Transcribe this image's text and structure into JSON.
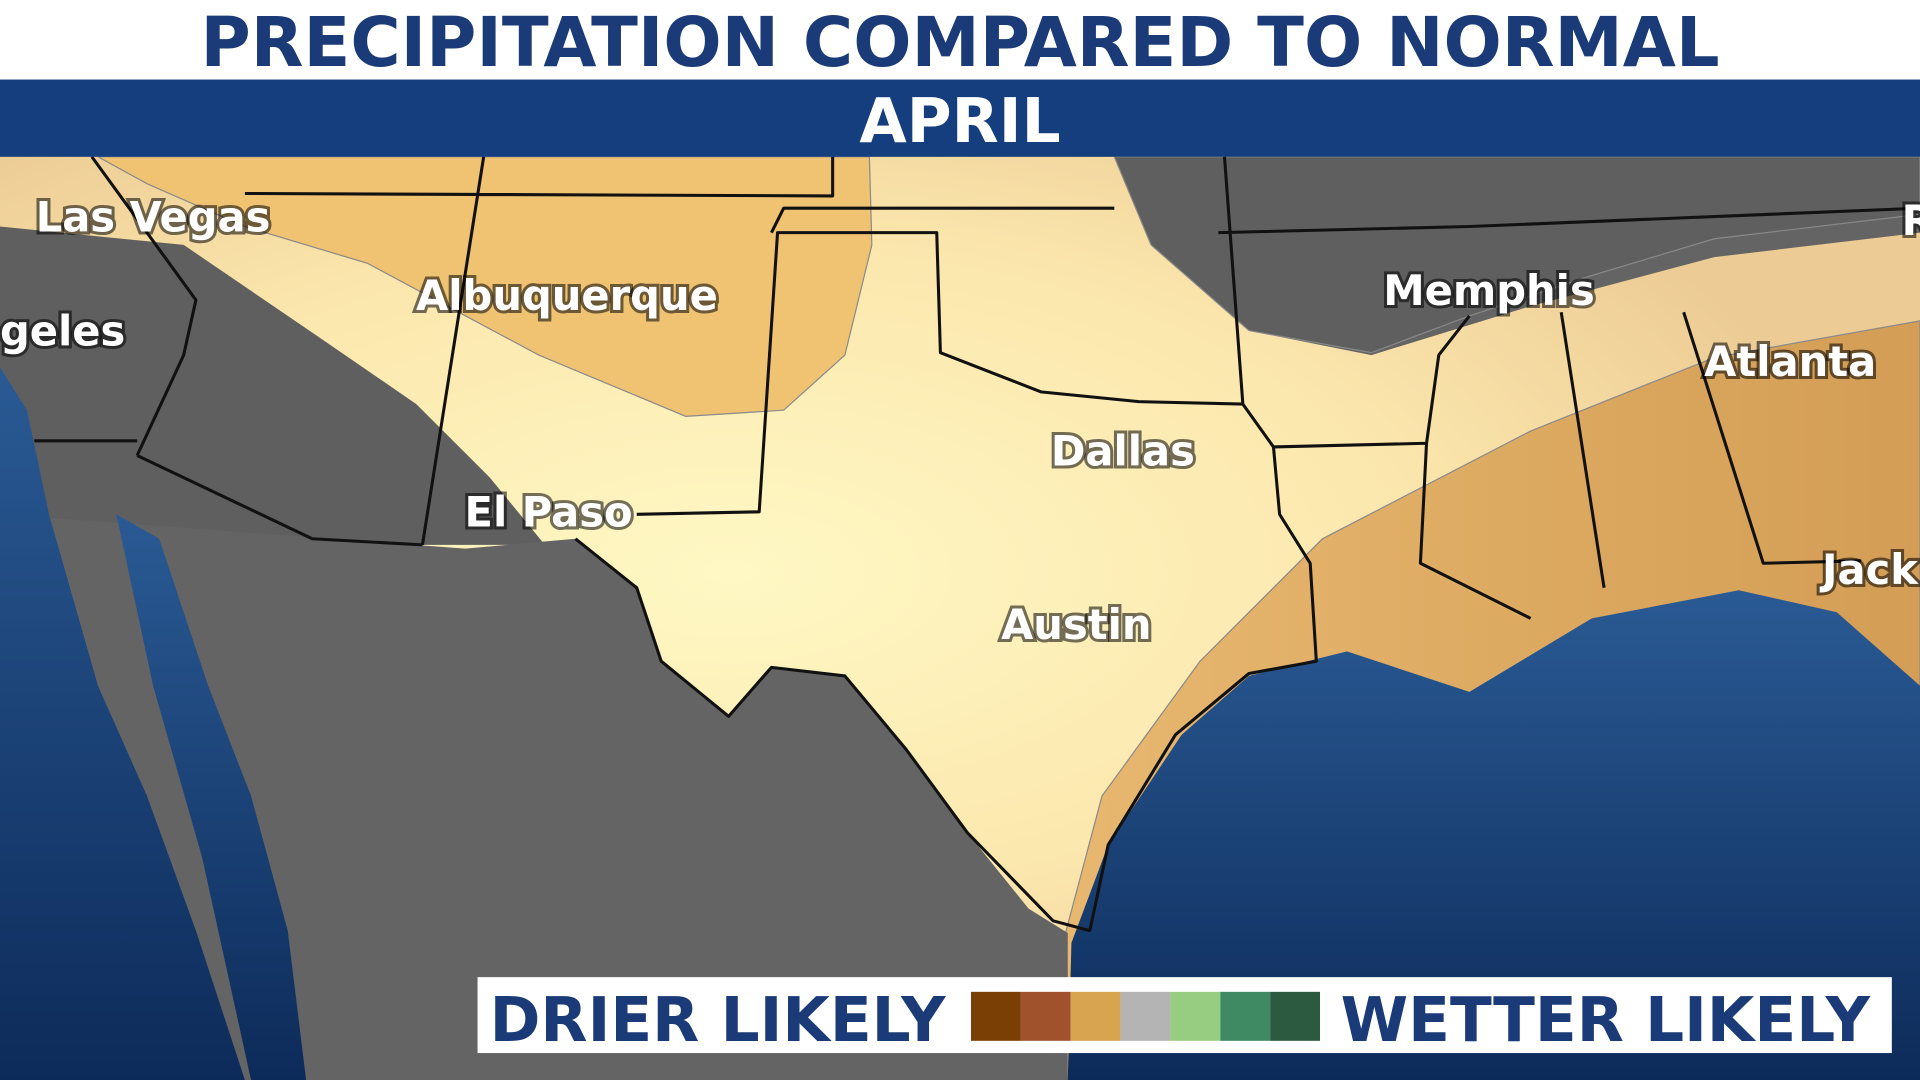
{
  "header": {
    "title": "PRECIPITATION COMPARED TO NORMAL",
    "subtitle": "APRIL"
  },
  "map": {
    "cities": [
      "Las Vegas",
      "geles",
      "Albuquerque",
      "El Paso",
      "Dallas",
      "Austin",
      "Memphis",
      "Atlanta",
      "Jack",
      "R"
    ]
  },
  "legend": {
    "left_label": "DRIER LIKELY",
    "right_label": "WETTER LIKELY",
    "colors": [
      "#7a3f05",
      "#a0522d",
      "#d8a450",
      "#b4b4b4",
      "#96cd80",
      "#3f8a62",
      "#2b5a40"
    ]
  }
}
